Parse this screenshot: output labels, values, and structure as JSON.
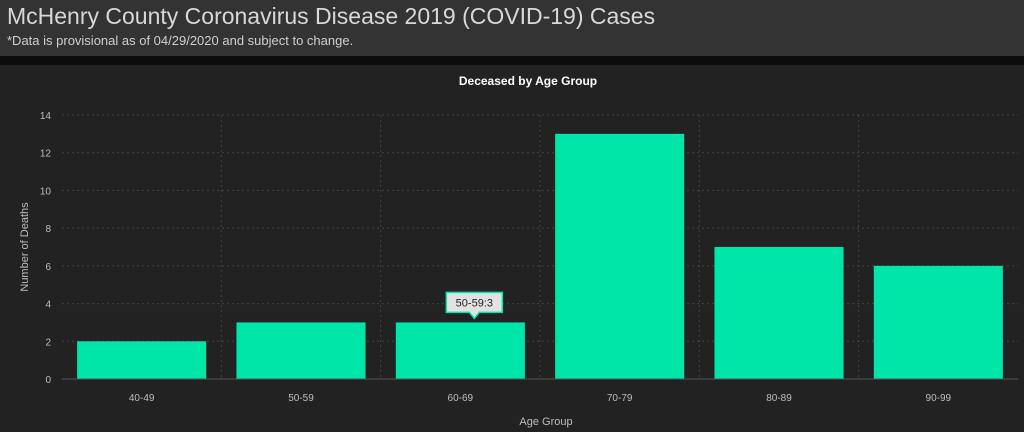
{
  "header": {
    "title": "McHenry County Coronavirus Disease 2019 (COVID-19) Cases",
    "subtitle": "*Data is provisional as of 04/29/2020 and subject to change."
  },
  "chart_data": {
    "type": "bar",
    "title": "Deceased by Age Group",
    "xlabel": "Age Group",
    "ylabel": "Number of Deaths",
    "categories": [
      "40-49",
      "50-59",
      "60-69",
      "70-79",
      "80-89",
      "90-99"
    ],
    "values": [
      2,
      3,
      3,
      13,
      7,
      6
    ],
    "ylim": [
      0,
      14
    ],
    "yticks": [
      0,
      2,
      4,
      6,
      8,
      10,
      12,
      14
    ],
    "grid": true,
    "bar_color": "#00e5a8",
    "tooltip": {
      "text": "50-59:3",
      "category_index": 2
    }
  }
}
